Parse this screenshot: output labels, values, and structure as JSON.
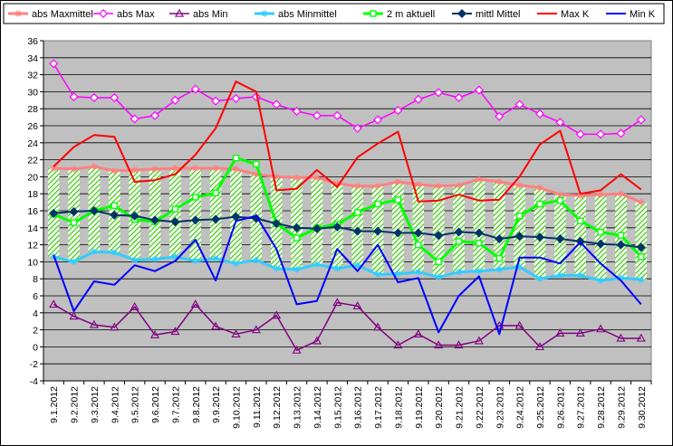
{
  "chart_data": {
    "type": "line",
    "title": "",
    "xlabel": "",
    "ylabel": "",
    "ylim": [
      -4,
      36
    ],
    "ytick_step": 2,
    "grid": "horizontal",
    "legend_position": "top",
    "plot_background": "#c0c0c0",
    "categories": [
      "9.1.2012",
      "9.2.2012",
      "9.3.2012",
      "9.4.2012",
      "9.5.2012",
      "9.6.2012",
      "9.7.2012",
      "9.8.2012",
      "9.9.2012",
      "9.10.2012",
      "9.11.2012",
      "9.12.2012",
      "9.13.2012",
      "9.14.2012",
      "9.15.2012",
      "9.16.2012",
      "9.17.2012",
      "9.18.2012",
      "9.19.2012",
      "9.20.2012",
      "9.21.2012",
      "9.22.2012",
      "9.23.2012",
      "9.24.2012",
      "9.25.2012",
      "9.26.2012",
      "9.27.2012",
      "9.28.2012",
      "9.29.2012",
      "9.30.2012"
    ],
    "band": {
      "upper_series": "abs Maxmittel",
      "lower_series": "abs Minmittel",
      "fill": "hatch-green"
    },
    "series": [
      {
        "name": "abs Maxmittel",
        "color": "#ff8080",
        "marker": "star",
        "width": 3,
        "values": [
          21.0,
          20.9,
          21.2,
          20.7,
          20.8,
          20.9,
          21.0,
          21.0,
          21.0,
          20.9,
          20.3,
          20.0,
          19.9,
          19.9,
          19.2,
          18.9,
          18.9,
          19.4,
          19.1,
          18.9,
          19.0,
          19.7,
          19.4,
          19.0,
          18.7,
          17.9,
          17.8,
          17.9,
          18.0,
          17.0
        ]
      },
      {
        "name": "abs Max",
        "color": "#ff00ff",
        "marker": "diamond-open",
        "width": 1.5,
        "values": [
          33.3,
          29.4,
          29.3,
          29.3,
          26.8,
          27.2,
          29.0,
          30.3,
          28.9,
          29.2,
          29.4,
          28.5,
          27.7,
          27.2,
          27.2,
          25.7,
          26.7,
          27.8,
          29.1,
          29.9,
          29.3,
          30.2,
          27.1,
          28.5,
          27.4,
          26.4,
          25.0,
          25.0,
          25.1,
          26.7
        ]
      },
      {
        "name": "abs Min",
        "color": "#800080",
        "marker": "triangle-open",
        "width": 1.5,
        "values": [
          5.0,
          3.6,
          2.6,
          2.3,
          4.7,
          1.4,
          1.8,
          5.0,
          2.4,
          1.5,
          2.0,
          3.7,
          -0.4,
          0.7,
          5.2,
          4.8,
          2.3,
          0.2,
          1.5,
          0.2,
          0.2,
          0.7,
          2.5,
          2.5,
          0.0,
          1.6,
          1.6,
          2.1,
          1.0,
          1.0
        ]
      },
      {
        "name": "abs Minmittel",
        "color": "#33ccff",
        "marker": "star",
        "width": 3,
        "values": [
          10.6,
          10.0,
          11.2,
          11.1,
          10.2,
          10.3,
          10.6,
          10.1,
          10.4,
          9.8,
          10.2,
          9.2,
          9.1,
          9.7,
          9.2,
          9.6,
          8.5,
          8.6,
          8.8,
          8.2,
          8.8,
          8.9,
          9.1,
          9.4,
          8.0,
          8.4,
          8.4,
          7.8,
          8.1,
          7.9
        ]
      },
      {
        "name": "2 m aktuell",
        "color": "#00ff00",
        "marker": "square-open",
        "width": 3,
        "values": [
          15.6,
          14.6,
          16.0,
          16.6,
          15.0,
          14.7,
          16.2,
          17.6,
          18.1,
          22.2,
          21.5,
          14.5,
          12.8,
          14.0,
          14.4,
          15.8,
          16.8,
          17.3,
          12.0,
          10.0,
          12.4,
          12.2,
          10.4,
          15.4,
          16.8,
          17.2,
          14.8,
          13.5,
          13.1,
          10.6
        ]
      },
      {
        "name": "mittl Mittel",
        "color": "#003366",
        "marker": "diamond-filled",
        "width": 2,
        "values": [
          15.7,
          15.9,
          16.0,
          15.5,
          15.4,
          14.9,
          14.7,
          14.9,
          15.0,
          15.3,
          15.1,
          14.5,
          14.0,
          13.9,
          14.1,
          13.6,
          13.6,
          13.4,
          13.4,
          13.1,
          13.5,
          13.4,
          12.7,
          13.0,
          12.9,
          12.7,
          12.4,
          12.1,
          12.0,
          11.7
        ]
      },
      {
        "name": "Max K",
        "color": "#ff0000",
        "marker": "none",
        "width": 2,
        "values": [
          21.2,
          23.5,
          24.9,
          24.7,
          19.4,
          19.6,
          20.3,
          22.6,
          25.7,
          31.2,
          30.0,
          18.4,
          18.6,
          20.8,
          18.8,
          22.3,
          23.9,
          25.3,
          17.1,
          17.2,
          17.9,
          17.2,
          17.3,
          20.0,
          23.8,
          25.4,
          18.0,
          18.4,
          20.3,
          18.5
        ]
      },
      {
        "name": "Min K",
        "color": "#0000ff",
        "marker": "none",
        "width": 2,
        "values": [
          10.8,
          4.2,
          7.7,
          7.3,
          9.6,
          8.9,
          10.1,
          12.6,
          7.8,
          14.8,
          15.4,
          11.5,
          5.0,
          5.4,
          11.5,
          8.9,
          12.0,
          7.6,
          8.1,
          1.7,
          6.0,
          8.3,
          1.5,
          10.5,
          10.5,
          9.8,
          12.3,
          9.8,
          7.8,
          5.0
        ]
      }
    ]
  }
}
